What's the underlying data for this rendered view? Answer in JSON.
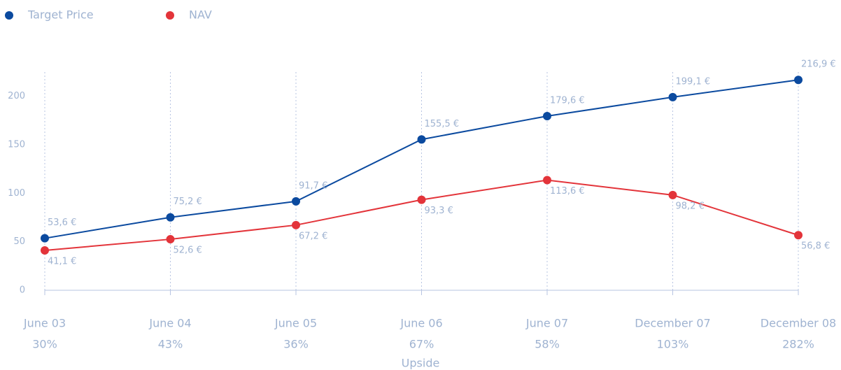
{
  "chart_data": {
    "type": "line",
    "categories": [
      "June 03",
      "June 04",
      "June 05",
      "June 06",
      "June 07",
      "December 07",
      "December 08"
    ],
    "upside": [
      "30%",
      "43%",
      "36%",
      "67%",
      "58%",
      "103%",
      "282%"
    ],
    "x_label": "Upside",
    "series": [
      {
        "name": "Target Price",
        "color": "#0b4a9f",
        "values": [
          53.6,
          75.2,
          91.7,
          155.5,
          179.6,
          199.1,
          216.9
        ],
        "value_labels": [
          "53,6 €",
          "75,2 €",
          "91,7 €",
          "155,5 €",
          "179,6 €",
          "199,1 €",
          "216,9 €"
        ]
      },
      {
        "name": "NAV",
        "color": "#e3343a",
        "values": [
          41.1,
          52.6,
          67.2,
          93.3,
          113.6,
          98.2,
          56.8
        ],
        "value_labels": [
          "41,1 €",
          "52,6 €",
          "67,2 €",
          "93,3 €",
          "113,6 €",
          "98,2 €",
          "56,8 €"
        ]
      }
    ],
    "ylim": [
      0,
      225
    ],
    "yticks": [
      0,
      50,
      100,
      150,
      200
    ],
    "grid": true,
    "legend": "top-left"
  }
}
